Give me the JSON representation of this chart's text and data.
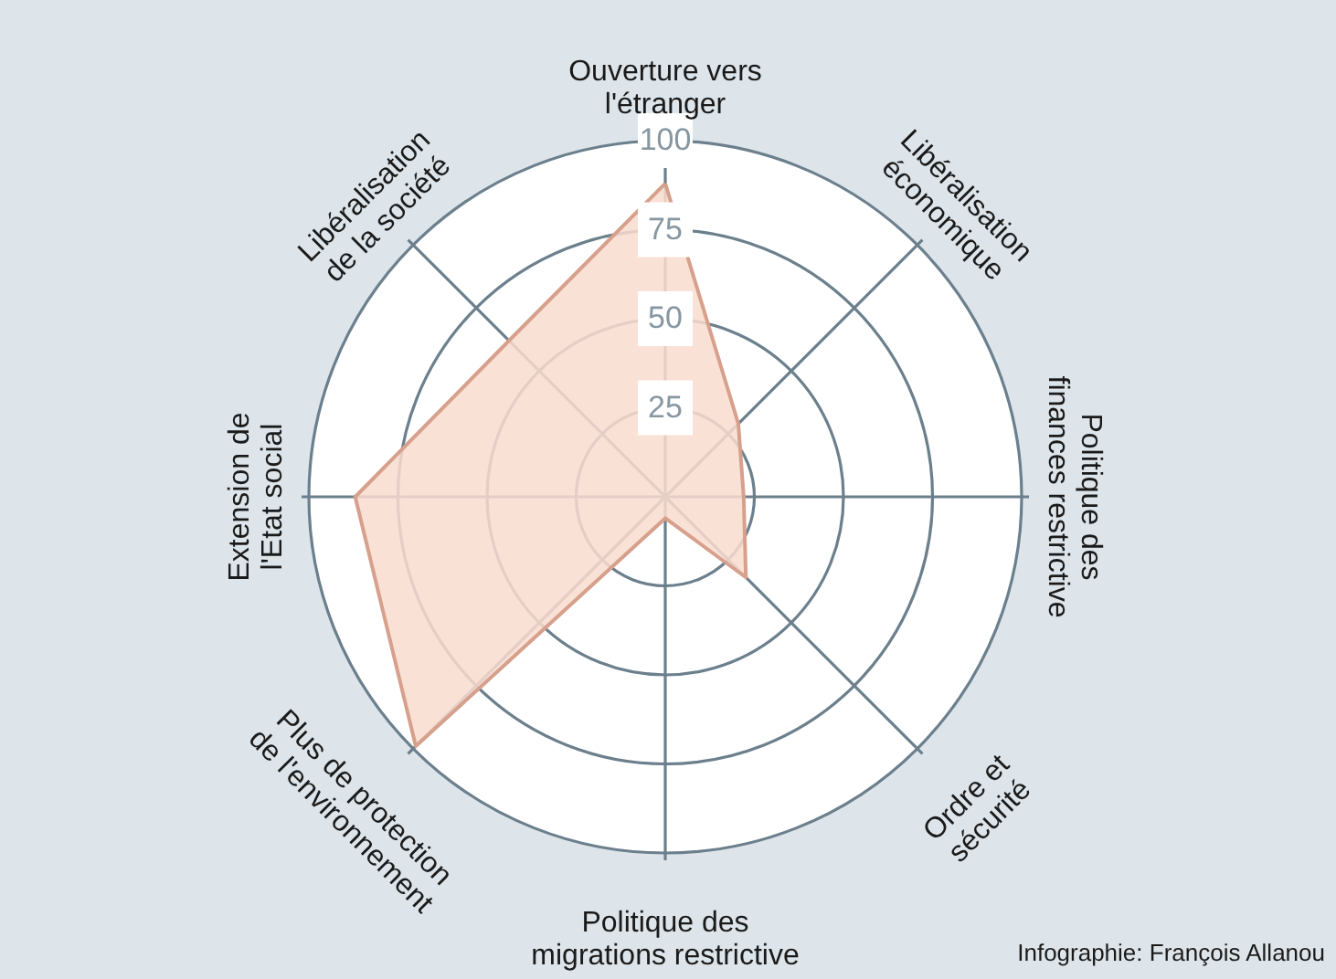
{
  "chart_data": {
    "type": "radar",
    "categories": [
      "Ouverture vers\nl'étranger",
      "Libéralisation\néconomique",
      "Politique des\nfinances restrictive",
      "Ordre et\nsécurité",
      "Politique des\nmigrations restrictive",
      "Plus de protection\nde l'environnement",
      "Extension de\nl'Etat social",
      "Libéralisation\nde la société"
    ],
    "series": [
      {
        "color": "#f9dccf",
        "values": [
          88,
          29,
          22,
          32,
          6,
          99,
          87,
          62
        ]
      }
    ],
    "ylim": [
      0,
      100
    ],
    "yticks": [
      25,
      50,
      75,
      100
    ],
    "annotations": [
      "Infographie: François Allanou"
    ]
  }
}
